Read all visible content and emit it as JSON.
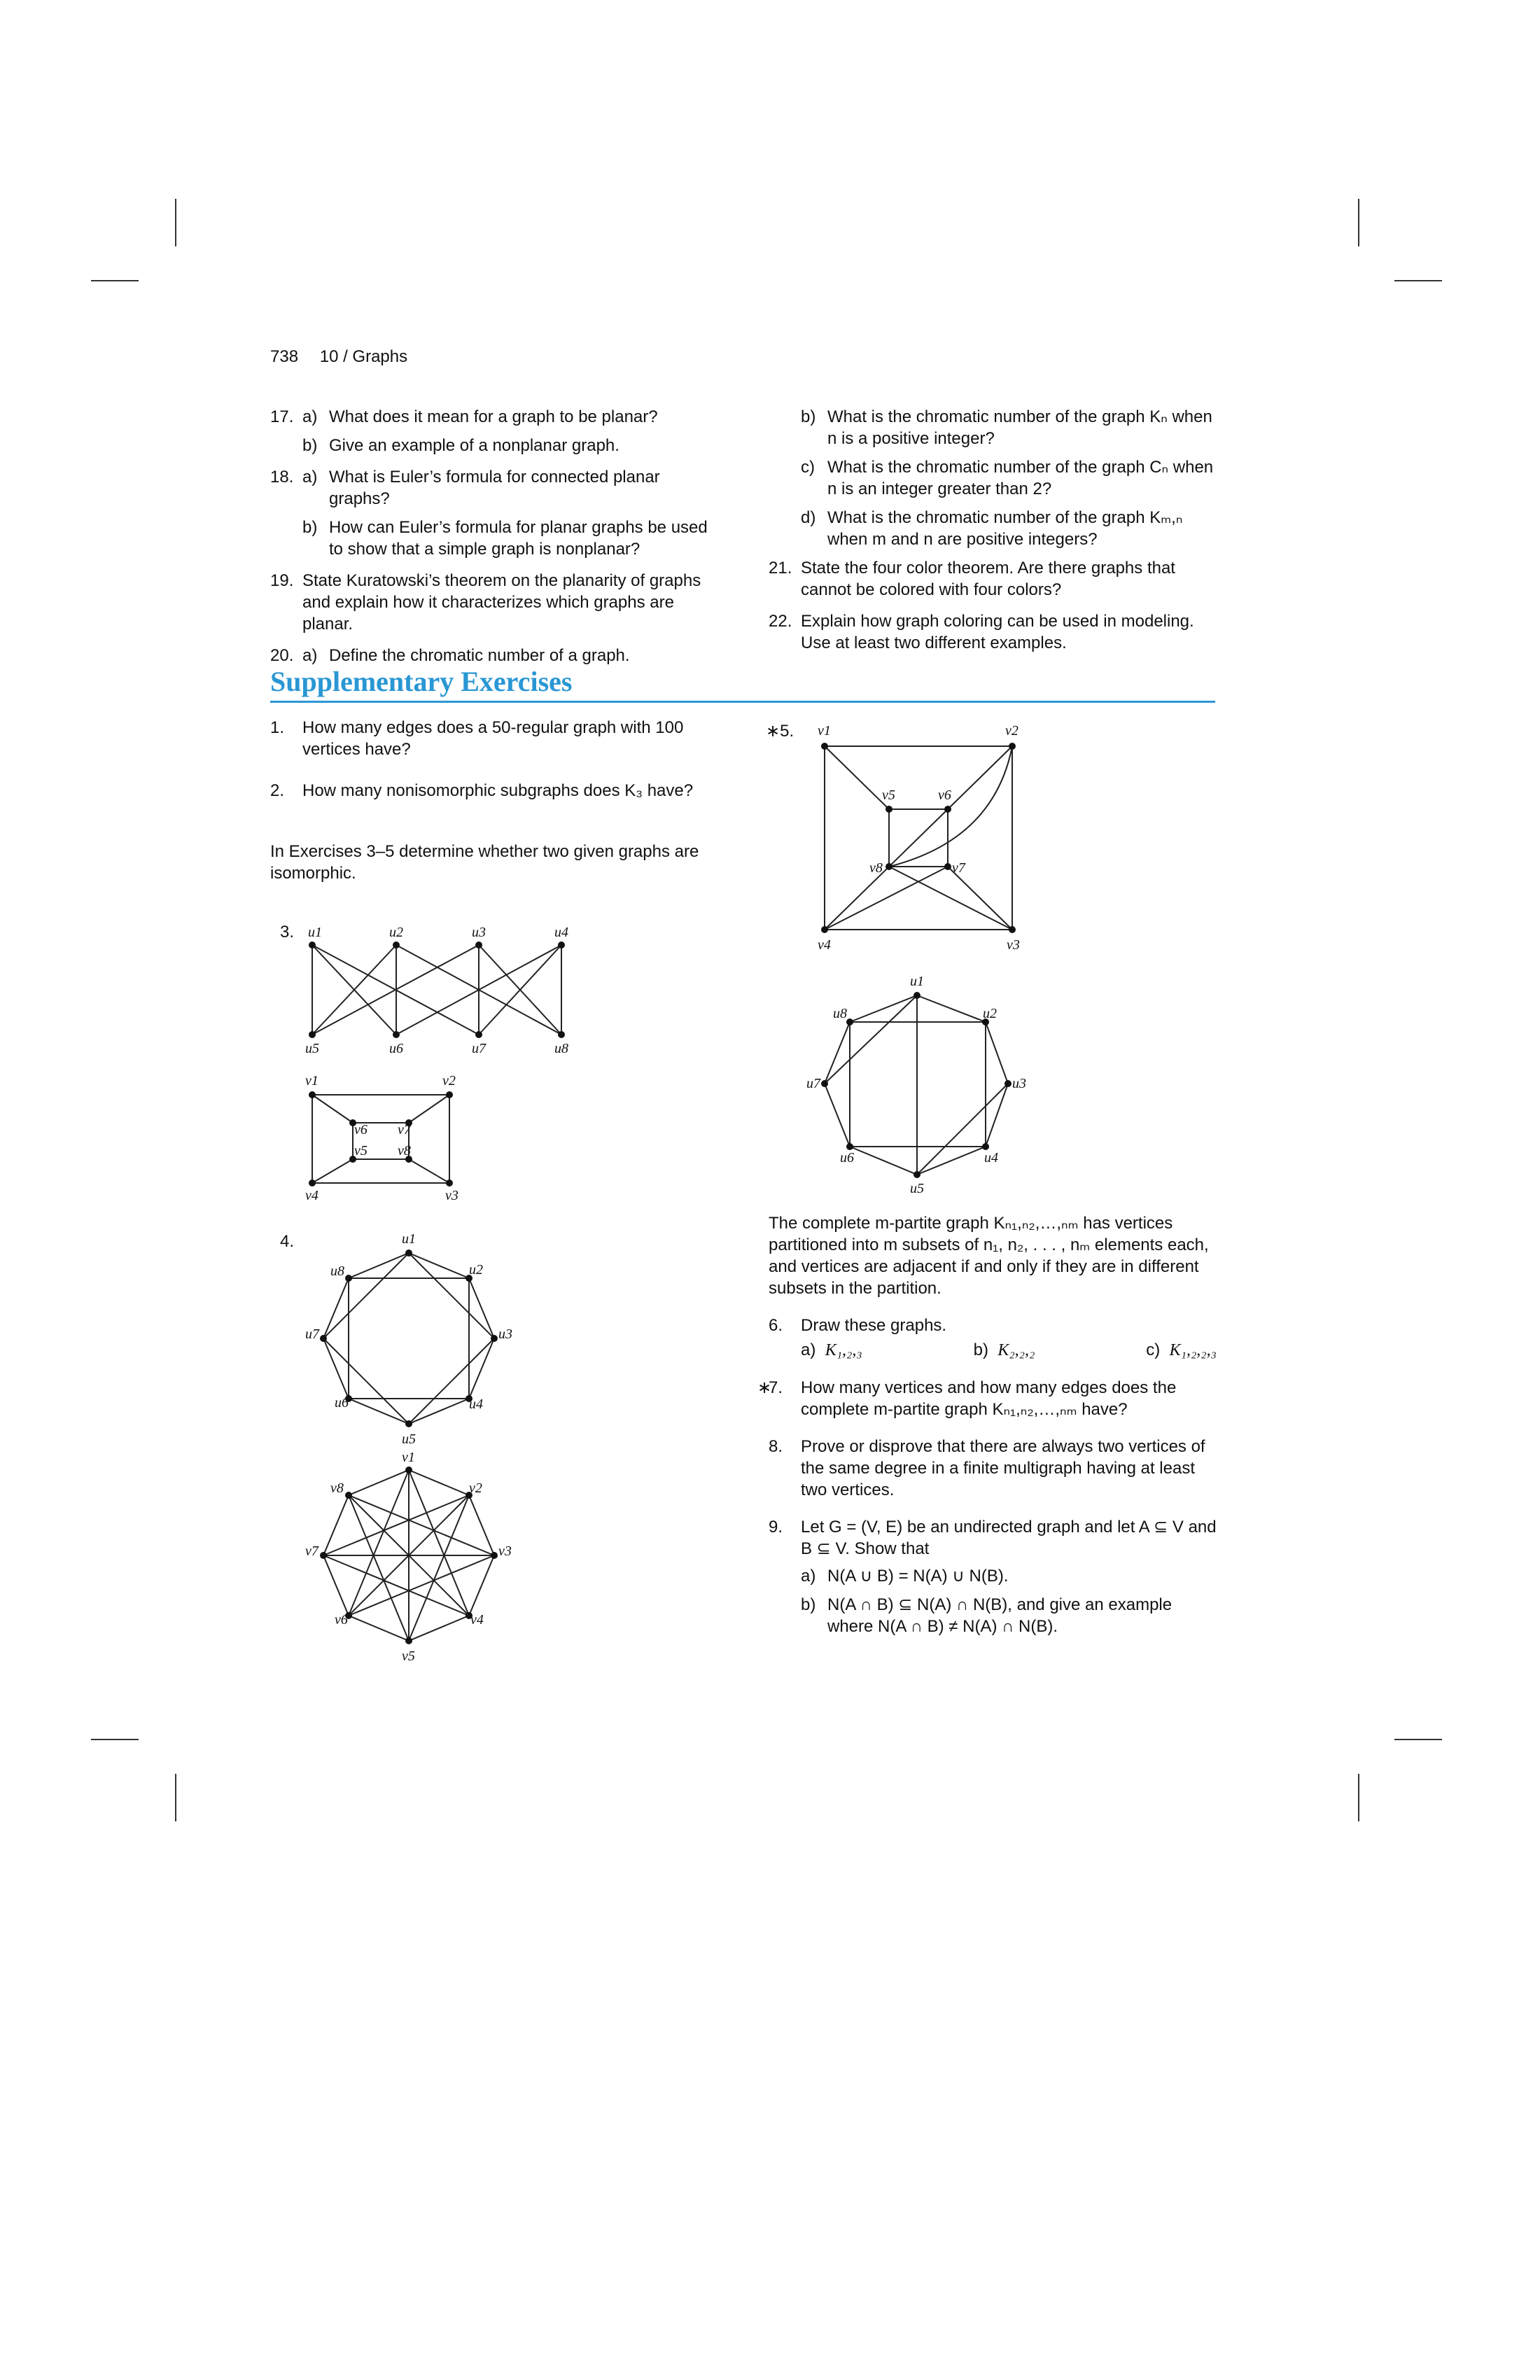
{
  "header": {
    "page_number": "738",
    "chapter": "10 / Graphs"
  },
  "review_left": [
    {
      "num": "17.",
      "subs": [
        {
          "label": "a)",
          "text": "What does it mean for a graph to be planar?"
        },
        {
          "label": "b)",
          "text": "Give an example of a nonplanar graph."
        }
      ]
    },
    {
      "num": "18.",
      "subs": [
        {
          "label": "a)",
          "text": "What is Euler’s formula for connected planar graphs?"
        },
        {
          "label": "b)",
          "text": "How can Euler’s formula for planar graphs be used to show that a simple graph is nonplanar?"
        }
      ]
    },
    {
      "num": "19.",
      "text": "State Kuratowski’s theorem on the planarity of graphs and explain how it characterizes which graphs are planar."
    },
    {
      "num": "20.",
      "subs": [
        {
          "label": "a)",
          "text": "Define the chromatic number of a graph."
        }
      ]
    }
  ],
  "review_right": {
    "b": "What is the chromatic number of the graph Kₙ when n is a positive integer?",
    "c": "What is the chromatic number of the graph Cₙ when n is an integer greater than 2?",
    "d": "What is the chromatic number of the graph Kₘ,ₙ when m and n are positive integers?",
    "q21": "State the four color theorem. Are there graphs that cannot be colored with four colors?",
    "q22": "Explain how graph coloring can be used in modeling. Use at least two different examples."
  },
  "section_title": "Supplementary Exercises",
  "supp": {
    "q1": "How many edges does a 50-regular graph with 100 vertices have?",
    "q2": "How many nonisomorphic subgraphs does K₃ have?",
    "intro35": "In Exercises 3–5 determine whether two given graphs are isomorphic.",
    "num3": "3.",
    "num4": "4.",
    "num5": "5.",
    "partite": "The complete m-partite graph Kₙ₁,ₙ₂,…,ₙₘ has vertices partitioned into m subsets of n₁, n₂, . . . , nₘ elements each, and vertices are adjacent if and only if they are in different subsets in the partition.",
    "q6": "Draw these graphs.",
    "q6a": "K₁,₂,₃",
    "q6b": "K₂,₂,₂",
    "q6c": "K₁,₂,₂,₃",
    "q7": "How many vertices and how many edges does the complete m-partite graph Kₙ₁,ₙ₂,…,ₙₘ have?",
    "q8": "Prove or disprove that there are always two vertices of the same degree in a finite multigraph having at least two vertices.",
    "q9": "Let G = (V, E) be an undirected graph and let A ⊆ V and B ⊆ V. Show that",
    "q9a": "N(A ∪ B) = N(A) ∪ N(B).",
    "q9b": "N(A ∩ B) ⊆ N(A) ∩ N(B), and give an example where N(A ∩ B) ≠ N(A) ∩ N(B)."
  },
  "labels": {
    "u1": "u1",
    "u2": "u2",
    "u3": "u3",
    "u4": "u4",
    "u5": "u5",
    "u6": "u6",
    "u7": "u7",
    "u8": "u8",
    "v1": "v1",
    "v2": "v2",
    "v3": "v3",
    "v4": "v4",
    "v5": "v5",
    "v6": "v6",
    "v7": "v7",
    "v8": "v8"
  }
}
